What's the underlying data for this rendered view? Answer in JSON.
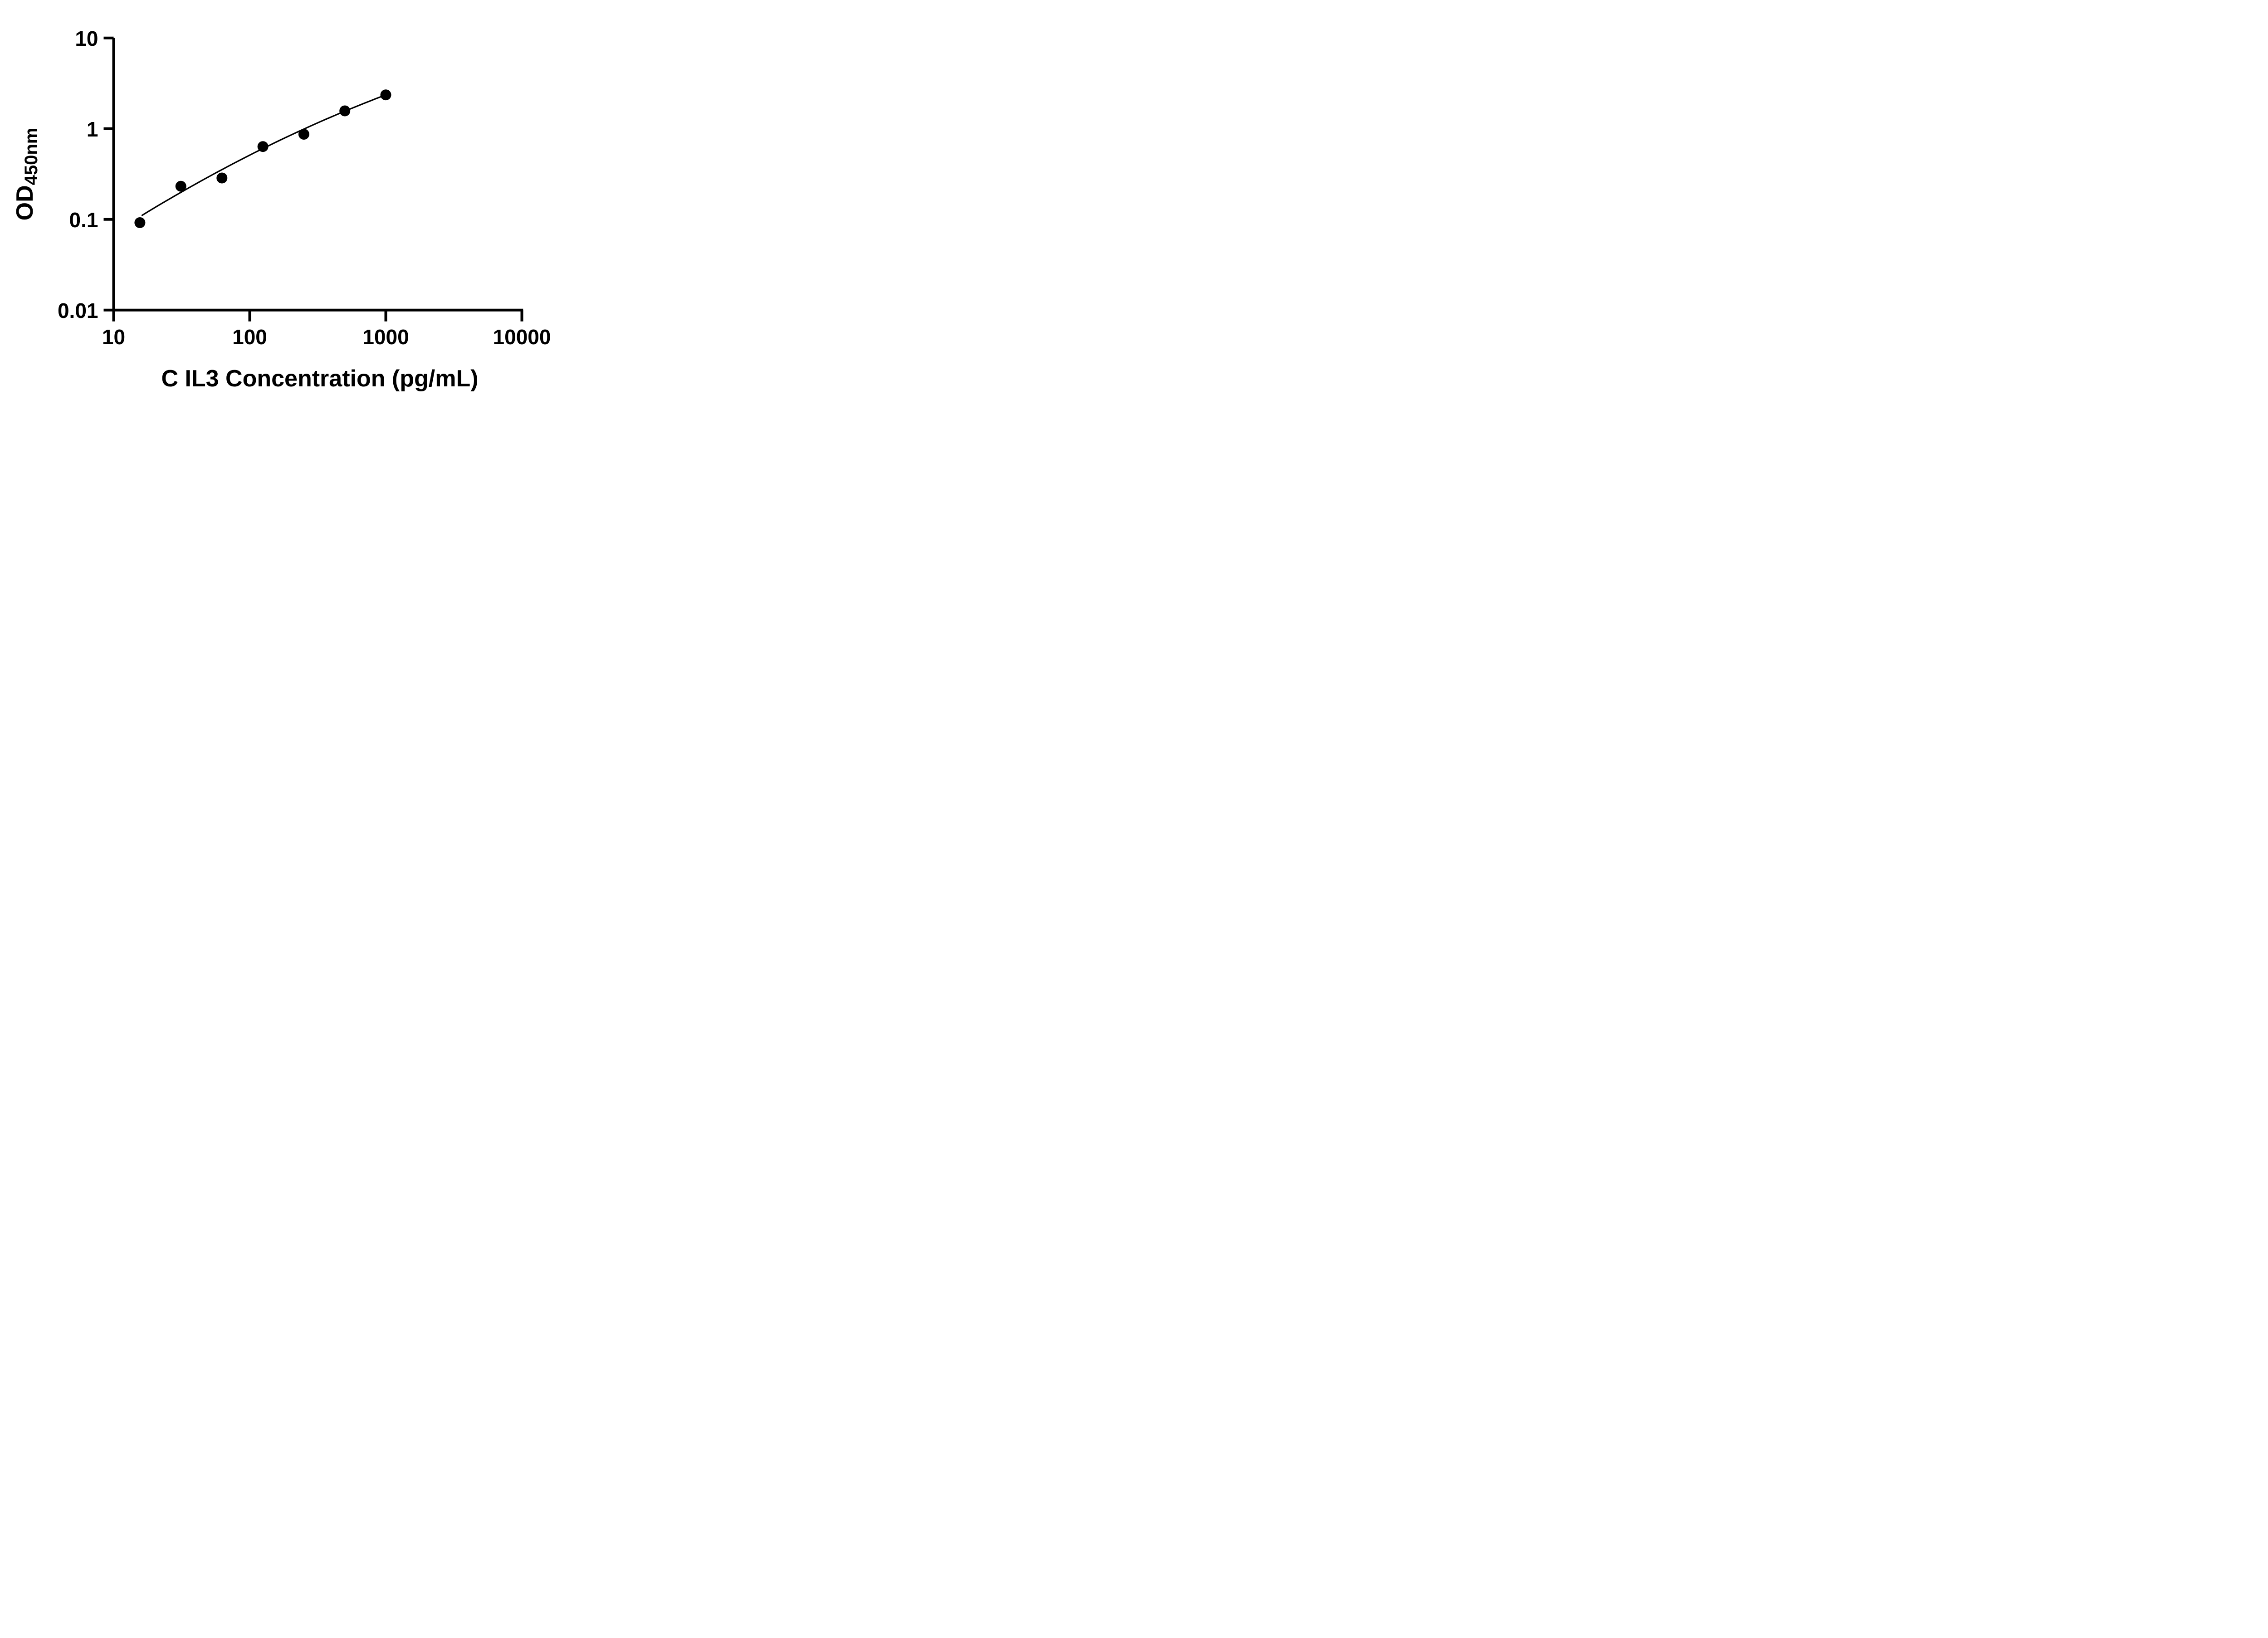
{
  "figure": {
    "kind": "elisa-standard-curve",
    "background_color": "#ffffff",
    "ink_color": "#000000"
  },
  "chart_data": {
    "type": "scatter",
    "title": "",
    "xlabel": "C IL3 Concentration (pg/mL)",
    "ylabel_main": "OD",
    "ylabel_sub": "450nm",
    "x_scale": "log10",
    "y_scale": "log10",
    "xlim": [
      10,
      10000
    ],
    "ylim": [
      0.01,
      10
    ],
    "grid": false,
    "legend": false,
    "x_ticks": [
      {
        "value": 10,
        "label": "10"
      },
      {
        "value": 100,
        "label": "100"
      },
      {
        "value": 1000,
        "label": "1000"
      },
      {
        "value": 10000,
        "label": "10000"
      }
    ],
    "y_ticks": [
      {
        "value": 10,
        "label": "10"
      },
      {
        "value": 1,
        "label": "1"
      },
      {
        "value": 0.1,
        "label": "0.1"
      },
      {
        "value": 0.01,
        "label": "0.01"
      }
    ],
    "series": [
      {
        "name": "standard points",
        "marker": "filled-circle",
        "color": "#000000",
        "points": [
          {
            "x": 15.6,
            "y": 0.092
          },
          {
            "x": 31.2,
            "y": 0.232
          },
          {
            "x": 62.5,
            "y": 0.286
          },
          {
            "x": 125,
            "y": 0.635
          },
          {
            "x": 250,
            "y": 0.868
          },
          {
            "x": 500,
            "y": 1.571
          },
          {
            "x": 1000,
            "y": 2.358
          }
        ]
      }
    ],
    "fit_line": {
      "name": "fitted standard curve",
      "color": "#000000",
      "anchors": [
        {
          "x": 16.2,
          "y": 0.111
        },
        {
          "x": 125,
          "y": 0.604
        },
        {
          "x": 1000,
          "y": 2.358
        }
      ]
    }
  }
}
